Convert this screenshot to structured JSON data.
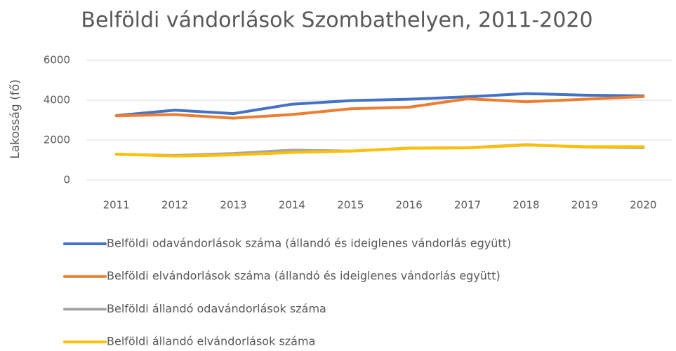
{
  "chart_data": {
    "type": "line",
    "title": "Belföldi vándorlások Szombathelyen, 2011-2020",
    "y_label": "Lakosság (fő)",
    "categories": [
      "2011",
      "2012",
      "2013",
      "2014",
      "2015",
      "2016",
      "2017",
      "2018",
      "2019",
      "2020"
    ],
    "series": [
      {
        "name": "Belföldi odavándorlások száma (állandó és ideiglenes vándorlás együtt)",
        "color": "#4472c4",
        "values": [
          3230,
          3500,
          3330,
          3800,
          3980,
          4050,
          4170,
          4330,
          4250,
          4220
        ]
      },
      {
        "name": "Belföldi elvándorlások száma (állandó és ideiglenes vándorlás együtt)",
        "color": "#ed7d31",
        "values": [
          3220,
          3280,
          3100,
          3280,
          3570,
          3650,
          4070,
          3920,
          4050,
          4180
        ]
      },
      {
        "name": "Belföldi állandó odavándorlások száma",
        "color": "#a5a5a5",
        "values": [
          1290,
          1230,
          1330,
          1500,
          1450,
          1600,
          1620,
          1770,
          1660,
          1620
        ]
      },
      {
        "name": "Belföldi állandó elvándorlások száma",
        "color": "#ffc000",
        "values": [
          1300,
          1200,
          1260,
          1380,
          1450,
          1590,
          1610,
          1750,
          1670,
          1670
        ]
      }
    ],
    "ylim": [
      0,
      6000
    ],
    "yticks": [
      0,
      2000,
      4000,
      6000
    ],
    "grid": true,
    "legend": "bottom"
  }
}
